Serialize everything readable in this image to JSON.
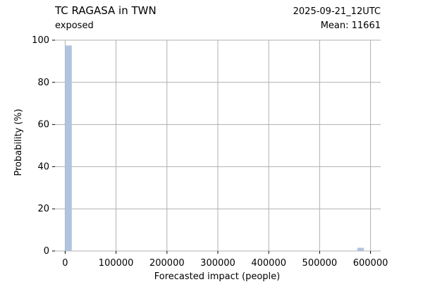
{
  "chart_data": {
    "type": "bar",
    "title": "TC RAGASA in TWN",
    "subtitle": "exposed",
    "date_label": "2025-09-21_12UTC",
    "mean_label": "Mean: 11661",
    "xlabel": "Forecasted impact (people)",
    "ylabel": "Probability (%)",
    "xlim": [
      -20000,
      620000
    ],
    "ylim": [
      0,
      100
    ],
    "x_ticks": [
      0,
      100000,
      200000,
      300000,
      400000,
      500000,
      600000
    ],
    "x_tick_labels": [
      "0",
      "100000",
      "200000",
      "300000",
      "400000",
      "500000",
      "600000"
    ],
    "y_ticks": [
      0,
      20,
      40,
      60,
      80,
      100
    ],
    "y_tick_labels": [
      "0",
      "20",
      "40",
      "60",
      "80",
      "100"
    ],
    "grid": true,
    "bar_color": "#b0c4de",
    "date_color": "#ff0000",
    "grid_color": "#b0b0b0",
    "bars": [
      {
        "x0": 0,
        "x1": 13000,
        "value": 97.5
      },
      {
        "x0": 574000,
        "x1": 587000,
        "value": 1.5
      }
    ]
  }
}
